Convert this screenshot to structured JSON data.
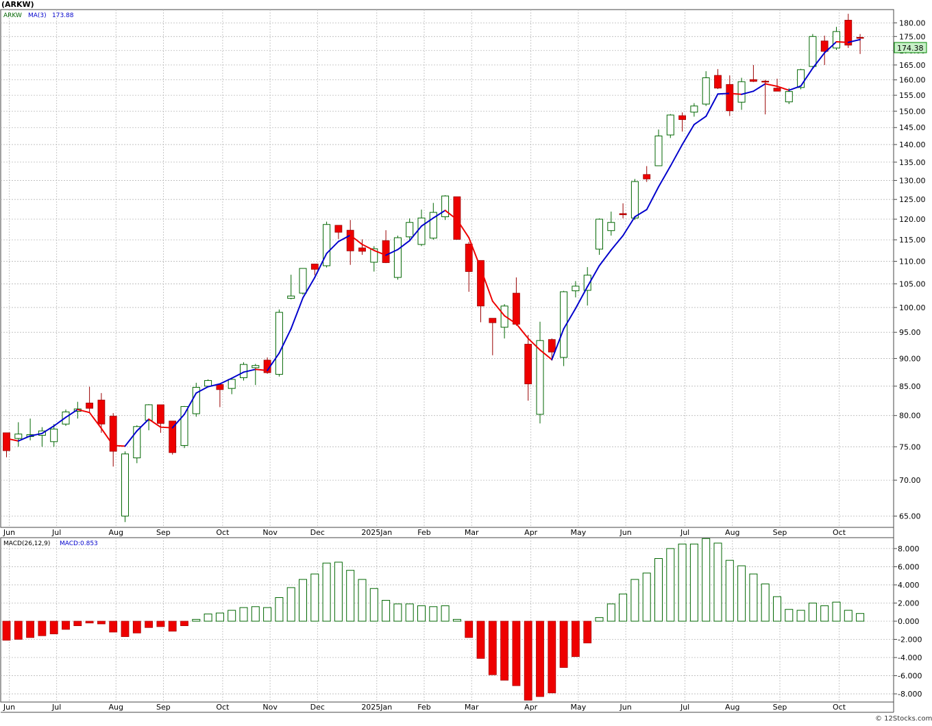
{
  "symbol_title": "(ARKW)",
  "price_legend": {
    "symbol": "ARKW",
    "ma_label": "MA(3)",
    "ma_value": "173.88"
  },
  "last_price_tag": "174.38",
  "macd_legend": {
    "label": "MACD(26,12,9)",
    "value_label": "MACD:0.853"
  },
  "watermark": "© 12Stocks.com",
  "colors": {
    "up": "#006600",
    "down": "#ee0000",
    "ma_up": "#0000cc",
    "ma_down": "#ee0000",
    "grid": "#b8b8b8",
    "tag_bg": "#c8f0c8"
  },
  "chart_data": [
    {
      "type": "candlestick",
      "interval": "weekly",
      "y_scale": "log",
      "ylim": [
        63.5,
        185
      ],
      "x_tick_labels": [
        {
          "text": "Jun",
          "week": 0.5
        },
        {
          "text": "Jul",
          "week": 4.5
        },
        {
          "text": "Aug",
          "week": 9.5
        },
        {
          "text": "Sep",
          "week": 13.5
        },
        {
          "text": "Oct",
          "week": 18.5
        },
        {
          "text": "Nov",
          "week": 22.5
        },
        {
          "text": "Dec",
          "week": 26.5
        },
        {
          "text": "2025Jan",
          "week": 31.5
        },
        {
          "text": "Feb",
          "week": 35.5
        },
        {
          "text": "Mar",
          "week": 39.5
        },
        {
          "text": "Apr",
          "week": 44.5
        },
        {
          "text": "May",
          "week": 48.5
        },
        {
          "text": "Jun",
          "week": 52.5
        },
        {
          "text": "Jul",
          "week": 57.5
        },
        {
          "text": "Aug",
          "week": 61.5
        },
        {
          "text": "Sep",
          "week": 65.5
        },
        {
          "text": "Oct",
          "week": 70.5
        }
      ],
      "y_ticks": [
        "65.00",
        "70.00",
        "75.00",
        "80.00",
        "85.00",
        "90.00",
        "95.00",
        "100.00",
        "105.00",
        "110.00",
        "115.00",
        "120.00",
        "125.00",
        "130.00",
        "135.00",
        "140.00",
        "145.00",
        "150.00",
        "155.00",
        "160.00",
        "165.00",
        "170.00",
        "175.00",
        "180.00"
      ],
      "ohlc": [
        [
          77.2,
          77.2,
          73.4,
          74.4
        ],
        [
          76.3,
          78.9,
          75.0,
          77.0
        ],
        [
          76.6,
          79.5,
          76.0,
          76.9
        ],
        [
          76.8,
          78.1,
          75.0,
          77.5
        ],
        [
          75.8,
          78.6,
          75.0,
          77.8
        ],
        [
          78.6,
          81.0,
          78.3,
          80.6
        ],
        [
          80.7,
          82.3,
          79.5,
          81.1
        ],
        [
          82.1,
          84.9,
          80.5,
          81.2
        ],
        [
          82.6,
          83.8,
          77.2,
          78.6
        ],
        [
          79.9,
          80.4,
          72.0,
          74.3
        ],
        [
          65.0,
          74.3,
          64.2,
          73.9
        ],
        [
          73.3,
          78.4,
          72.5,
          78.2
        ],
        [
          79.2,
          81.9,
          77.6,
          81.8
        ],
        [
          81.8,
          81.8,
          77.2,
          78.7
        ],
        [
          79.1,
          79.1,
          73.8,
          74.1
        ],
        [
          75.2,
          81.6,
          74.8,
          81.5
        ],
        [
          80.3,
          85.6,
          79.8,
          84.8
        ],
        [
          85.0,
          86.2,
          84.8,
          86.0
        ],
        [
          85.3,
          85.3,
          81.4,
          84.4
        ],
        [
          84.6,
          86.2,
          83.6,
          86.2
        ],
        [
          86.5,
          89.3,
          86.0,
          88.9
        ],
        [
          88.3,
          89.0,
          85.2,
          88.7
        ],
        [
          89.7,
          90.2,
          87.2,
          87.4
        ],
        [
          87.1,
          99.6,
          86.7,
          99.0
        ],
        [
          101.9,
          107.0,
          101.7,
          102.4
        ],
        [
          103.0,
          108.4,
          102.7,
          108.4
        ],
        [
          109.4,
          109.4,
          106.9,
          108.2
        ],
        [
          109.0,
          119.4,
          108.6,
          118.7
        ],
        [
          118.5,
          118.5,
          115.2,
          116.8
        ],
        [
          117.3,
          119.8,
          109.2,
          112.4
        ],
        [
          113.1,
          115.1,
          111.5,
          112.3
        ],
        [
          109.8,
          113.5,
          107.7,
          112.9
        ],
        [
          114.8,
          117.3,
          109.6,
          109.7
        ],
        [
          106.4,
          116.0,
          105.9,
          115.5
        ],
        [
          115.7,
          120.2,
          114.6,
          119.2
        ],
        [
          113.9,
          122.4,
          113.5,
          120.3
        ],
        [
          115.4,
          124.1,
          115.0,
          121.7
        ],
        [
          120.6,
          126.1,
          119.8,
          125.9
        ],
        [
          125.7,
          125.7,
          115.0,
          115.1
        ],
        [
          114.0,
          114.5,
          103.3,
          107.7
        ],
        [
          110.2,
          110.2,
          97.0,
          100.3
        ],
        [
          97.8,
          97.8,
          90.6,
          96.9
        ],
        [
          96.0,
          100.7,
          93.8,
          100.3
        ],
        [
          103.0,
          106.4,
          96.3,
          96.6
        ],
        [
          92.7,
          94.5,
          82.5,
          85.4
        ],
        [
          80.2,
          97.1,
          78.7,
          93.4
        ],
        [
          93.6,
          93.8,
          89.6,
          91.2
        ],
        [
          90.2,
          103.5,
          88.6,
          103.3
        ],
        [
          103.5,
          105.6,
          102.1,
          104.5
        ],
        [
          103.6,
          108.7,
          100.4,
          106.9
        ],
        [
          112.8,
          120.2,
          111.5,
          120.0
        ],
        [
          117.2,
          121.9,
          116.0,
          119.2
        ],
        [
          121.4,
          124.0,
          120.2,
          121.1
        ],
        [
          120.3,
          130.4,
          119.8,
          129.7
        ],
        [
          131.6,
          133.9,
          129.6,
          130.4
        ],
        [
          134.0,
          144.4,
          134.0,
          142.5
        ],
        [
          142.8,
          149.1,
          141.9,
          148.8
        ],
        [
          148.6,
          149.6,
          143.8,
          147.4
        ],
        [
          149.7,
          152.5,
          148.3,
          151.6
        ],
        [
          152.2,
          162.9,
          151.6,
          160.7
        ],
        [
          161.5,
          163.6,
          157.0,
          157.3
        ],
        [
          158.5,
          161.5,
          148.5,
          150.1
        ],
        [
          152.8,
          160.7,
          150.4,
          159.4
        ],
        [
          160.1,
          165.0,
          159.3,
          159.5
        ],
        [
          159.6,
          160.0,
          149.0,
          159.4
        ],
        [
          157.3,
          160.4,
          156.8,
          156.3
        ],
        [
          152.9,
          157.3,
          152.2,
          156.2
        ],
        [
          157.5,
          163.7,
          156.9,
          163.4
        ],
        [
          164.5,
          175.9,
          164.2,
          175.0
        ],
        [
          173.4,
          175.3,
          165.0,
          169.7
        ],
        [
          170.9,
          178.5,
          170.2,
          176.8
        ],
        [
          181.0,
          183.4,
          170.9,
          171.9
        ],
        [
          174.7,
          175.9,
          168.8,
          174.4
        ]
      ],
      "ma3_visible": [
        [
          0,
          76.3
        ],
        [
          1,
          75.9
        ],
        [
          2,
          76.7
        ],
        [
          3,
          77.1
        ],
        [
          4,
          78.3
        ],
        [
          5,
          79.7
        ],
        [
          6,
          81.0
        ],
        [
          7,
          80.5
        ],
        [
          8,
          77.9
        ],
        [
          9,
          75.2
        ],
        [
          10,
          75.1
        ],
        [
          11,
          77.5
        ],
        [
          12,
          79.4
        ],
        [
          13,
          78.1
        ],
        [
          14,
          78.0
        ],
        [
          15,
          80.2
        ],
        [
          16,
          83.8
        ],
        [
          17,
          84.9
        ],
        [
          18,
          85.4
        ],
        [
          19,
          86.4
        ],
        [
          20,
          87.5
        ],
        [
          21,
          88.0
        ],
        [
          22,
          87.8
        ],
        [
          23,
          91.0
        ],
        [
          24,
          95.7
        ],
        [
          25,
          102.0
        ],
        [
          26,
          106.4
        ],
        [
          27,
          111.8
        ],
        [
          28,
          114.6
        ],
        [
          29,
          116.1
        ],
        [
          30,
          113.9
        ],
        [
          31,
          112.5
        ],
        [
          32,
          111.4
        ],
        [
          33,
          112.7
        ],
        [
          34,
          114.8
        ],
        [
          35,
          118.3
        ],
        [
          36,
          120.3
        ],
        [
          37,
          122.2
        ],
        [
          38,
          119.9
        ],
        [
          39,
          115.5
        ],
        [
          40,
          108.4
        ],
        [
          41,
          101.3
        ],
        [
          42,
          98.3
        ],
        [
          43,
          96.7
        ],
        [
          44,
          93.8
        ],
        [
          45,
          91.6
        ],
        [
          46,
          89.8
        ],
        [
          47,
          95.7
        ],
        [
          48,
          99.8
        ],
        [
          49,
          104.4
        ],
        [
          50,
          109.0
        ],
        [
          51,
          112.6
        ],
        [
          52,
          116.0
        ],
        [
          53,
          120.6
        ],
        [
          54,
          122.4
        ],
        [
          55,
          128.3
        ],
        [
          56,
          133.9
        ],
        [
          57,
          140.0
        ],
        [
          58,
          145.9
        ],
        [
          59,
          148.4
        ],
        [
          60,
          155.4
        ],
        [
          61,
          155.6
        ],
        [
          62,
          155.3
        ],
        [
          63,
          156.3
        ],
        [
          64,
          158.7
        ],
        [
          65,
          157.9
        ],
        [
          66,
          156.6
        ],
        [
          67,
          158.0
        ],
        [
          68,
          163.9
        ],
        [
          69,
          169.2
        ],
        [
          70,
          173.1
        ],
        [
          71,
          172.9
        ],
        [
          72,
          173.9
        ]
      ]
    },
    {
      "type": "bar",
      "title": "MACD(26,12,9)",
      "ylim": [
        -8.9,
        9.2
      ],
      "y_ticks": [
        "-8.000",
        "-6.000",
        "-4.000",
        "-2.000",
        "0.000",
        "2.000",
        "4.000",
        "6.000",
        "8.000"
      ],
      "values": [
        -2.1,
        -2.0,
        -1.8,
        -1.6,
        -1.4,
        -0.9,
        -0.5,
        -0.2,
        -0.3,
        -1.2,
        -1.7,
        -1.3,
        -0.7,
        -0.6,
        -1.1,
        -0.5,
        0.2,
        0.8,
        0.9,
        1.2,
        1.5,
        1.6,
        1.5,
        2.6,
        3.7,
        4.6,
        5.2,
        6.4,
        6.5,
        5.6,
        4.6,
        3.6,
        2.3,
        1.9,
        1.9,
        1.7,
        1.6,
        1.7,
        0.2,
        -1.8,
        -4.1,
        -5.9,
        -6.5,
        -7.1,
        -8.7,
        -8.3,
        -7.9,
        -5.1,
        -3.9,
        -2.4,
        0.4,
        1.9,
        3.0,
        4.6,
        5.3,
        6.9,
        8.0,
        8.5,
        8.5,
        9.1,
        8.6,
        6.7,
        6.1,
        5.2,
        4.1,
        2.7,
        1.3,
        1.2,
        2.0,
        1.7,
        2.1,
        1.2,
        0.85
      ]
    }
  ]
}
